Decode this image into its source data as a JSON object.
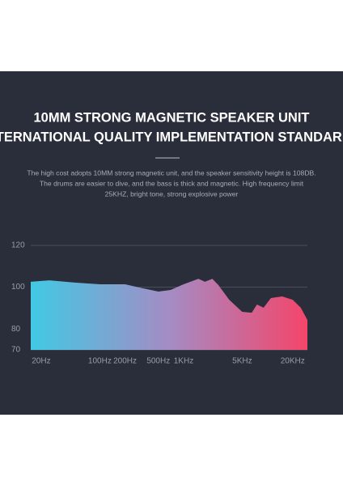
{
  "header": {
    "title_lines": [
      "10MM STRONG MAGNETIC SPEAKER UNIT",
      "INTERNATIONAL QUALITY IMPLEMENTATION STANDARDS"
    ],
    "description_lines": [
      "The high cost adopts 10MM strong magnetic unit, and the speaker sensitivity height is 108DB.",
      "The drums are easier to dive, and the bass is thick and magnetic. High frequency limit",
      "25KHZ, bright tone, strong explosive power"
    ]
  },
  "chart_data": {
    "type": "area",
    "log_x": true,
    "x": [
      15,
      25,
      50,
      100,
      200,
      300,
      500,
      700,
      1000,
      1500,
      1800,
      2200,
      2600,
      3500,
      5000,
      6500,
      7500,
      9000,
      11000,
      15000,
      20000,
      25000,
      30000
    ],
    "values": [
      102.6,
      103.3,
      102.2,
      101.4,
      101.4,
      99.8,
      97.9,
      98.7,
      101.4,
      104,
      102.6,
      104,
      101,
      94,
      88.2,
      87.8,
      91.7,
      90.2,
      94.8,
      95.6,
      94,
      90.2,
      84.3
    ],
    "colors": [
      "#41c9e4",
      "#a48cc4",
      "#f4456a"
    ],
    "xlim": [
      15,
      30000
    ],
    "xticks": [
      {
        "value": 20,
        "label": "20Hz"
      },
      {
        "value": 100,
        "label": "100Hz"
      },
      {
        "value": 200,
        "label": "200Hz"
      },
      {
        "value": 500,
        "label": "500Hz"
      },
      {
        "value": 1000,
        "label": "1KHz"
      },
      {
        "value": 5000,
        "label": "5KHz"
      },
      {
        "value": 20000,
        "label": "20KHz"
      }
    ],
    "ylim": [
      70,
      120
    ],
    "yticks": [
      70,
      80,
      100,
      120
    ],
    "grid": true
  }
}
